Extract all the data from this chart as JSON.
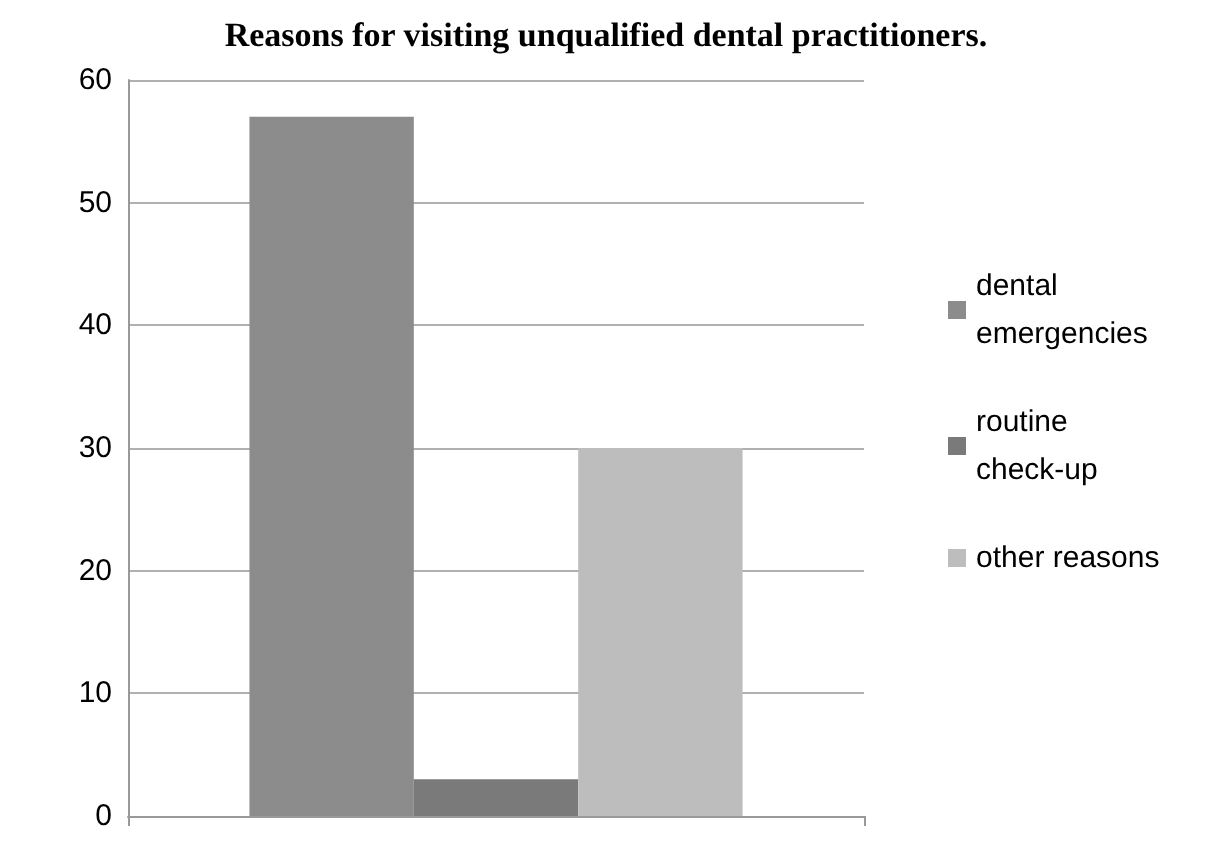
{
  "chart_data": {
    "type": "bar",
    "title": "Reasons for visiting unqualified dental practitioners.",
    "categories": [
      null
    ],
    "series": [
      {
        "name": "dental emergencies",
        "color": "#8c8c8c",
        "values": [
          57
        ]
      },
      {
        "name": "routine check-up",
        "color": "#7a7a7a",
        "values": [
          3
        ]
      },
      {
        "name": "other reasons",
        "color": "#bdbdbd",
        "values": [
          30
        ]
      }
    ],
    "ylim": [
      0,
      60
    ],
    "yticks": [
      0,
      10,
      20,
      30,
      40,
      50,
      60
    ],
    "grid": "y",
    "legend": "right"
  }
}
